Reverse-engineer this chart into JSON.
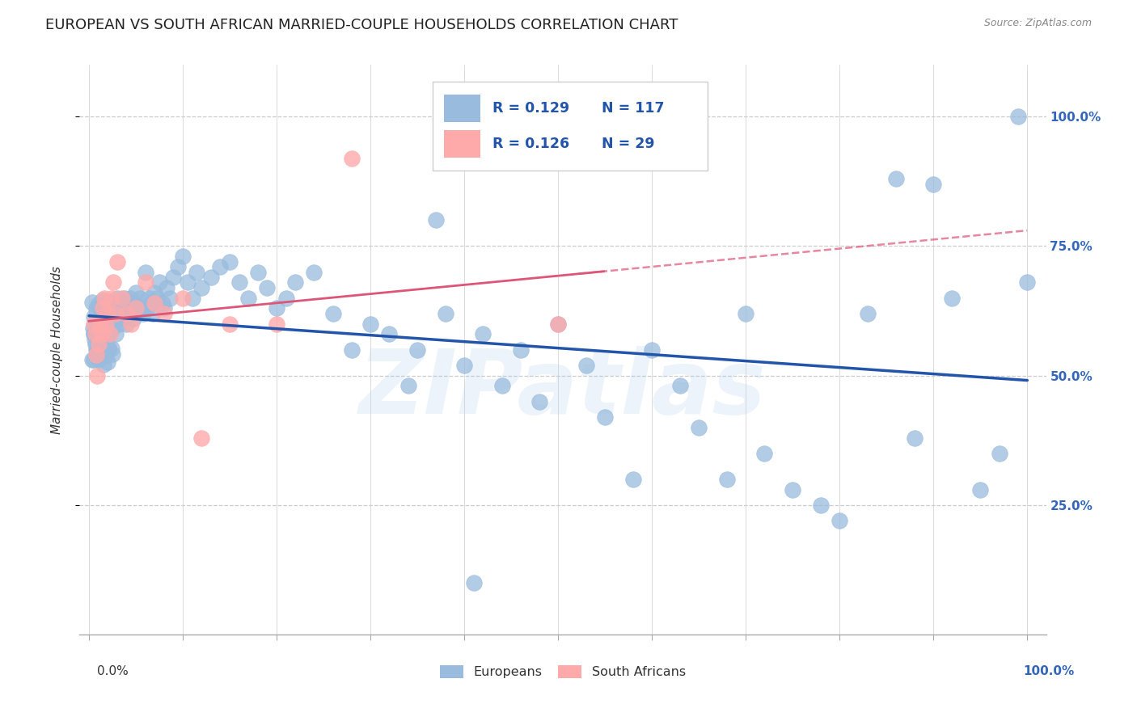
{
  "title": "EUROPEAN VS SOUTH AFRICAN MARRIED-COUPLE HOUSEHOLDS CORRELATION CHART",
  "source": "Source: ZipAtlas.com",
  "ylabel": "Married-couple Households",
  "ytick_labels": [
    "25.0%",
    "50.0%",
    "75.0%",
    "100.0%"
  ],
  "ytick_values": [
    0.25,
    0.5,
    0.75,
    1.0
  ],
  "xlim": [
    -0.01,
    1.02
  ],
  "ylim": [
    0.0,
    1.1
  ],
  "legend_R_eu": "R = 0.129",
  "legend_N_eu": "N = 117",
  "legend_R_sa": "R = 0.126",
  "legend_N_sa": "N = 29",
  "european_color": "#99BBDD",
  "sa_color": "#FFAAAA",
  "trend_eu_color": "#2255AA",
  "trend_sa_color": "#DD5577",
  "watermark": "ZIPatlas",
  "background_color": "#FFFFFF",
  "grid_color": "#CCCCCC",
  "title_fontsize": 13,
  "axis_label_fontsize": 11,
  "tick_fontsize": 11,
  "right_tick_color": "#3366BB",
  "eu_x": [
    0.005,
    0.006,
    0.007,
    0.008,
    0.009,
    0.01,
    0.01,
    0.01,
    0.011,
    0.012,
    0.013,
    0.014,
    0.015,
    0.015,
    0.016,
    0.017,
    0.018,
    0.019,
    0.02,
    0.02,
    0.021,
    0.022,
    0.023,
    0.024,
    0.025,
    0.026,
    0.027,
    0.028,
    0.029,
    0.03,
    0.031,
    0.032,
    0.033,
    0.034,
    0.035,
    0.036,
    0.037,
    0.038,
    0.039,
    0.04,
    0.042,
    0.043,
    0.044,
    0.046,
    0.047,
    0.048,
    0.05,
    0.052,
    0.054,
    0.056,
    0.058,
    0.06,
    0.062,
    0.064,
    0.066,
    0.068,
    0.07,
    0.072,
    0.075,
    0.078,
    0.08,
    0.083,
    0.086,
    0.09,
    0.095,
    0.1,
    0.105,
    0.11,
    0.115,
    0.12,
    0.13,
    0.14,
    0.15,
    0.16,
    0.17,
    0.18,
    0.19,
    0.2,
    0.21,
    0.22,
    0.24,
    0.26,
    0.28,
    0.3,
    0.32,
    0.35,
    0.38,
    0.4,
    0.42,
    0.44,
    0.46,
    0.48,
    0.5,
    0.53,
    0.55,
    0.58,
    0.6,
    0.63,
    0.65,
    0.68,
    0.7,
    0.72,
    0.75,
    0.78,
    0.8,
    0.83,
    0.86,
    0.88,
    0.9,
    0.92,
    0.95,
    0.97,
    0.99,
    1.0,
    0.34,
    0.37,
    0.41
  ],
  "eu_y": [
    0.58,
    0.57,
    0.56,
    0.55,
    0.54,
    0.6,
    0.58,
    0.53,
    0.57,
    0.55,
    0.59,
    0.56,
    0.62,
    0.58,
    0.6,
    0.57,
    0.61,
    0.59,
    0.64,
    0.58,
    0.6,
    0.62,
    0.63,
    0.59,
    0.61,
    0.64,
    0.6,
    0.58,
    0.63,
    0.65,
    0.61,
    0.6,
    0.63,
    0.62,
    0.64,
    0.61,
    0.63,
    0.65,
    0.62,
    0.6,
    0.64,
    0.62,
    0.65,
    0.63,
    0.61,
    0.64,
    0.66,
    0.62,
    0.65,
    0.63,
    0.62,
    0.7,
    0.63,
    0.65,
    0.64,
    0.62,
    0.66,
    0.65,
    0.68,
    0.64,
    0.63,
    0.67,
    0.65,
    0.69,
    0.71,
    0.73,
    0.68,
    0.65,
    0.7,
    0.67,
    0.69,
    0.71,
    0.72,
    0.68,
    0.65,
    0.7,
    0.67,
    0.63,
    0.65,
    0.68,
    0.7,
    0.62,
    0.55,
    0.6,
    0.58,
    0.55,
    0.62,
    0.52,
    0.58,
    0.48,
    0.55,
    0.45,
    0.6,
    0.52,
    0.42,
    0.3,
    0.55,
    0.48,
    0.4,
    0.3,
    0.62,
    0.35,
    0.28,
    0.25,
    0.22,
    0.62,
    0.88,
    0.38,
    0.87,
    0.65,
    0.28,
    0.35,
    1.0,
    0.68,
    0.48,
    0.8,
    0.1
  ],
  "sa_x": [
    0.005,
    0.007,
    0.008,
    0.009,
    0.01,
    0.012,
    0.014,
    0.015,
    0.016,
    0.018,
    0.02,
    0.022,
    0.024,
    0.026,
    0.028,
    0.03,
    0.035,
    0.04,
    0.045,
    0.05,
    0.06,
    0.07,
    0.08,
    0.1,
    0.12,
    0.15,
    0.2,
    0.28,
    0.5
  ],
  "sa_y": [
    0.6,
    0.58,
    0.54,
    0.5,
    0.56,
    0.6,
    0.58,
    0.63,
    0.65,
    0.6,
    0.62,
    0.58,
    0.65,
    0.68,
    0.62,
    0.72,
    0.65,
    0.62,
    0.6,
    0.63,
    0.68,
    0.64,
    0.62,
    0.65,
    0.38,
    0.6,
    0.6,
    0.92,
    0.6
  ]
}
